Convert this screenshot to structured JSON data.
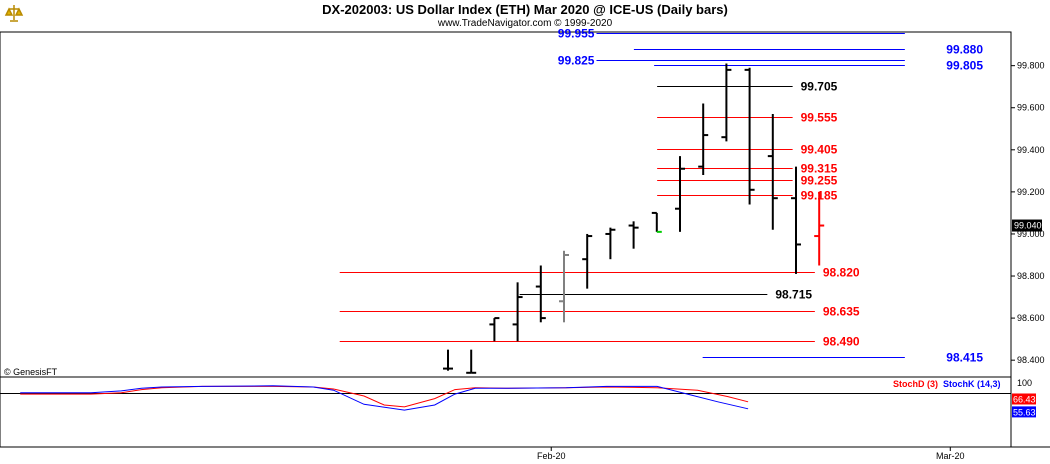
{
  "header": {
    "title": "DX-202003:  US Dollar Index (ETH) Mar 2020 @ ICE-US  (Daily bars)",
    "subtitle": "www.TradeNavigator.com © 1999-2020",
    "logo_icon": "scales-icon"
  },
  "footer": {
    "credit": "© GenesisFT"
  },
  "chart_data": {
    "type": "bar",
    "price_axis": {
      "ylim": [
        98.32,
        99.96
      ],
      "ticks": [
        "99.800",
        "99.600",
        "99.400",
        "99.200",
        "99.000",
        "98.800",
        "98.600",
        "98.400"
      ],
      "tick_values": [
        99.8,
        99.6,
        99.4,
        99.2,
        99.0,
        98.8,
        98.6,
        98.4
      ],
      "last_price_tag": "99.040",
      "last_price": 99.04
    },
    "x_axis": {
      "labels": [
        "Feb-20",
        "Mar-20"
      ],
      "label_bar_index": [
        4.45,
        21.65
      ]
    },
    "ohlc": [
      {
        "o": 98.36,
        "h": 98.45,
        "l": 98.35,
        "c": 98.36,
        "color": "#000000"
      },
      {
        "o": 98.34,
        "h": 98.45,
        "l": 98.34,
        "c": 98.34,
        "color": "#000000"
      },
      {
        "o": 98.57,
        "h": 98.6,
        "l": 98.49,
        "c": 98.6,
        "color": "#000000"
      },
      {
        "o": 98.57,
        "h": 98.77,
        "l": 98.49,
        "c": 98.7,
        "color": "#000000"
      },
      {
        "o": 98.75,
        "h": 98.85,
        "l": 98.58,
        "c": 98.6,
        "color": "#000000"
      },
      {
        "o": 98.68,
        "h": 98.92,
        "l": 98.58,
        "c": 98.9,
        "color": "#808080"
      },
      {
        "o": 98.88,
        "h": 99.0,
        "l": 98.74,
        "c": 98.99,
        "color": "#000000"
      },
      {
        "o": 99.0,
        "h": 99.03,
        "l": 98.88,
        "c": 99.02,
        "color": "#000000"
      },
      {
        "o": 99.04,
        "h": 99.06,
        "l": 98.93,
        "c": 99.03,
        "color": "#000000"
      },
      {
        "o": 99.1,
        "h": 99.1,
        "l": 99.01,
        "c": 99.01,
        "color": "#000000"
      },
      {
        "o": 99.12,
        "h": 99.37,
        "l": 99.01,
        "c": 99.31,
        "color": "#000000"
      },
      {
        "o": 99.32,
        "h": 99.62,
        "l": 99.28,
        "c": 99.47,
        "color": "#000000"
      },
      {
        "o": 99.46,
        "h": 99.81,
        "l": 99.44,
        "c": 99.78,
        "color": "#000000"
      },
      {
        "o": 99.78,
        "h": 99.79,
        "l": 99.14,
        "c": 99.21,
        "color": "#000000"
      },
      {
        "o": 99.37,
        "h": 99.57,
        "l": 99.02,
        "c": 99.17,
        "color": "#000000"
      },
      {
        "o": 99.17,
        "h": 99.32,
        "l": 98.81,
        "c": 98.95,
        "color": "#000000"
      },
      {
        "o": 98.99,
        "h": 99.2,
        "l": 98.85,
        "c": 99.04,
        "color": "#ff0000"
      }
    ],
    "bars_extra": {
      "first_bar_green_close_index": 9
    },
    "levels": [
      {
        "label": "99.955",
        "value": 99.955,
        "color": "#0000ff",
        "side": "left",
        "x_from": 0.59,
        "x_to": 0.895
      },
      {
        "label": "99.880",
        "value": 99.88,
        "color": "#0000ff",
        "side": "right",
        "x_from": 0.627,
        "x_to": 0.895
      },
      {
        "label": "99.825",
        "value": 99.825,
        "color": "#0000ff",
        "side": "left",
        "x_from": 0.59,
        "x_to": 0.895
      },
      {
        "label": "99.805",
        "value": 99.805,
        "color": "#0000ff",
        "side": "right",
        "x_from": 0.647,
        "x_to": 0.895
      },
      {
        "label": "99.705",
        "value": 99.705,
        "color": "#000000",
        "side": "right",
        "x_from": 0.65,
        "x_to": 0.784
      },
      {
        "label": "99.555",
        "value": 99.555,
        "color": "#ff0000",
        "side": "right",
        "x_from": 0.65,
        "x_to": 0.784
      },
      {
        "label": "99.405",
        "value": 99.405,
        "color": "#ff0000",
        "side": "right",
        "x_from": 0.65,
        "x_to": 0.784
      },
      {
        "label": "99.315",
        "value": 99.315,
        "color": "#ff0000",
        "side": "right",
        "x_from": 0.65,
        "x_to": 0.784
      },
      {
        "label": "99.255",
        "value": 99.255,
        "color": "#ff0000",
        "side": "right",
        "x_from": 0.65,
        "x_to": 0.784
      },
      {
        "label": "99.185",
        "value": 99.185,
        "color": "#ff0000",
        "side": "right",
        "x_from": 0.65,
        "x_to": 0.784
      },
      {
        "label": "98.820",
        "value": 98.82,
        "color": "#ff0000",
        "side": "right",
        "x_from": 0.336,
        "x_to": 0.806
      },
      {
        "label": "98.715",
        "value": 98.715,
        "color": "#000000",
        "side": "right",
        "x_from": 0.514,
        "x_to": 0.759
      },
      {
        "label": "98.635",
        "value": 98.635,
        "color": "#ff0000",
        "side": "right",
        "x_from": 0.336,
        "x_to": 0.806
      },
      {
        "label": "98.490",
        "value": 98.49,
        "color": "#ff0000",
        "side": "right",
        "x_from": 0.336,
        "x_to": 0.806
      },
      {
        "label": "98.415",
        "value": 98.415,
        "color": "#0000ff",
        "side": "right",
        "x_from": 0.695,
        "x_to": 0.895
      }
    ],
    "stochastic": {
      "ylim": [
        0,
        100
      ],
      "tick": "100",
      "baseline_value": 80,
      "legend": [
        {
          "label": "StochD (3)",
          "color": "#ff0000"
        },
        {
          "label": "StochK (14,3)",
          "color": "#0000ff"
        }
      ],
      "value_tags": [
        {
          "label": "66.43",
          "value": 66.43,
          "color": "#ff0000"
        },
        {
          "label": "55.63",
          "value": 55.63,
          "color": "#0000ff"
        }
      ],
      "k_x": [
        0.02,
        0.09,
        0.12,
        0.14,
        0.16,
        0.2,
        0.27,
        0.31,
        0.33,
        0.36,
        0.4,
        0.43,
        0.45,
        0.47,
        0.5,
        0.56,
        0.6,
        0.65,
        0.68,
        0.71,
        0.74
      ],
      "k_y": [
        80,
        80,
        83,
        87,
        89,
        90,
        91,
        89,
        84,
        62,
        53,
        61,
        78,
        87,
        87,
        88,
        90,
        90,
        78,
        66,
        55
      ],
      "d_x": [
        0.02,
        0.09,
        0.12,
        0.14,
        0.16,
        0.2,
        0.27,
        0.31,
        0.33,
        0.36,
        0.38,
        0.4,
        0.43,
        0.45,
        0.47,
        0.5,
        0.56,
        0.6,
        0.65,
        0.69,
        0.72,
        0.74
      ],
      "d_y": [
        78,
        78,
        80,
        85,
        88,
        90,
        90,
        89,
        86,
        75,
        61,
        58,
        71,
        85,
        88,
        87,
        88,
        89,
        88,
        84,
        74,
        66
      ]
    }
  }
}
